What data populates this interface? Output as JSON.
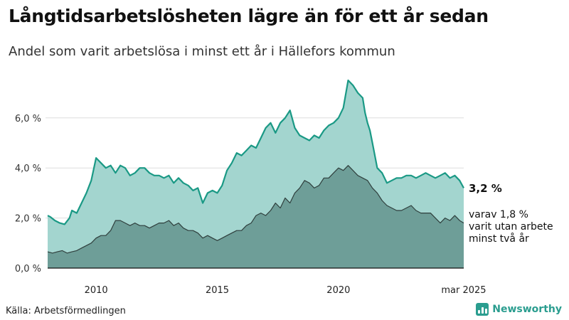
{
  "title": "Långtidsarbetslösheten lägre än för ett år sedan",
  "subtitle": "Andel som varit arbetslösa i minst ett år i Hällefors kommun",
  "source": "Källa: Arbetsförmedlingen",
  "brand": "Newsworthy",
  "annotation_main": "3,2 %",
  "annotation_sub": [
    "varav 1,8 %",
    "varit utan arbete",
    "minst två år"
  ],
  "colors": {
    "area_light": "#a3d5cf",
    "line_light": "#1a9985",
    "area_dark": "#6e9e98",
    "line_dark": "#2f3f3d",
    "grid": "#dddddd",
    "brand": "#2a9d8f"
  },
  "chart_data": {
    "type": "area",
    "ylim": [
      0,
      7.5
    ],
    "y_ticks": [
      {
        "value": 0,
        "label": "0,0 %"
      },
      {
        "value": 2,
        "label": "2,0 %"
      },
      {
        "value": 4,
        "label": "4,0 %"
      },
      {
        "value": 6,
        "label": "6,0 %"
      }
    ],
    "x_ticks": [
      {
        "value": 2010,
        "label": "2010"
      },
      {
        "value": 2015,
        "label": "2015"
      },
      {
        "value": 2020,
        "label": "2020"
      },
      {
        "value": 2025.17,
        "label": "mar 2025"
      }
    ],
    "xlim": [
      2008.0,
      2025.17
    ],
    "series": [
      {
        "x": [
          2008.0,
          2008.1,
          2008.3,
          2008.5,
          2008.7,
          2008.9,
          2009.0,
          2009.2,
          2009.4,
          2009.6,
          2009.8,
          2010.0,
          2010.2,
          2010.4,
          2010.6,
          2010.8,
          2011.0,
          2011.2,
          2011.4,
          2011.6,
          2011.8,
          2012.0,
          2012.2,
          2012.4,
          2012.6,
          2012.8,
          2013.0,
          2013.2,
          2013.4,
          2013.6,
          2013.8,
          2014.0,
          2014.2,
          2014.4,
          2014.6,
          2014.8,
          2015.0,
          2015.2,
          2015.4,
          2015.6,
          2015.8,
          2016.0,
          2016.2,
          2016.4,
          2016.6,
          2016.8,
          2017.0,
          2017.2,
          2017.4,
          2017.6,
          2017.8,
          2018.0,
          2018.2,
          2018.4,
          2018.6,
          2018.8,
          2019.0,
          2019.2,
          2019.4,
          2019.6,
          2019.8,
          2020.0,
          2020.2,
          2020.4,
          2020.6,
          2020.8,
          2021.0,
          2021.1,
          2021.2,
          2021.3,
          2021.4,
          2021.5,
          2021.6,
          2021.8,
          2022.0,
          2022.2,
          2022.4,
          2022.6,
          2022.8,
          2023.0,
          2023.2,
          2023.4,
          2023.6,
          2023.8,
          2024.0,
          2024.2,
          2024.4,
          2024.6,
          2024.8,
          2025.0,
          2025.17
        ],
        "values": [
          2.1,
          2.05,
          1.9,
          1.8,
          1.75,
          2.0,
          2.3,
          2.2,
          2.6,
          3.0,
          3.5,
          4.4,
          4.2,
          4.0,
          4.1,
          3.8,
          4.1,
          4.0,
          3.7,
          3.8,
          4.0,
          4.0,
          3.8,
          3.7,
          3.7,
          3.6,
          3.7,
          3.4,
          3.6,
          3.4,
          3.3,
          3.1,
          3.2,
          2.6,
          3.0,
          3.1,
          3.0,
          3.3,
          3.9,
          4.2,
          4.6,
          4.5,
          4.7,
          4.9,
          4.8,
          5.2,
          5.6,
          5.8,
          5.4,
          5.8,
          6.0,
          6.3,
          5.6,
          5.3,
          5.2,
          5.1,
          5.3,
          5.2,
          5.5,
          5.7,
          5.8,
          6.0,
          6.4,
          7.5,
          7.3,
          7.0,
          6.8,
          6.2,
          5.8,
          5.5,
          5.0,
          4.5,
          4.0,
          3.8,
          3.4,
          3.5,
          3.6,
          3.6,
          3.7,
          3.7,
          3.6,
          3.7,
          3.8,
          3.7,
          3.6,
          3.7,
          3.8,
          3.6,
          3.7,
          3.5,
          3.2
        ]
      },
      {
        "x": [
          2008.0,
          2008.2,
          2008.4,
          2008.6,
          2008.8,
          2009.0,
          2009.2,
          2009.4,
          2009.6,
          2009.8,
          2010.0,
          2010.2,
          2010.4,
          2010.6,
          2010.8,
          2011.0,
          2011.2,
          2011.4,
          2011.6,
          2011.8,
          2012.0,
          2012.2,
          2012.4,
          2012.6,
          2012.8,
          2013.0,
          2013.2,
          2013.4,
          2013.6,
          2013.8,
          2014.0,
          2014.2,
          2014.4,
          2014.6,
          2014.8,
          2015.0,
          2015.2,
          2015.4,
          2015.6,
          2015.8,
          2016.0,
          2016.2,
          2016.4,
          2016.6,
          2016.8,
          2017.0,
          2017.2,
          2017.4,
          2017.6,
          2017.8,
          2018.0,
          2018.2,
          2018.4,
          2018.6,
          2018.8,
          2019.0,
          2019.2,
          2019.4,
          2019.6,
          2019.8,
          2020.0,
          2020.2,
          2020.4,
          2020.6,
          2020.8,
          2021.0,
          2021.2,
          2021.4,
          2021.6,
          2021.8,
          2022.0,
          2022.2,
          2022.4,
          2022.6,
          2022.8,
          2023.0,
          2023.2,
          2023.4,
          2023.6,
          2023.8,
          2024.0,
          2024.2,
          2024.4,
          2024.6,
          2024.8,
          2025.0,
          2025.17
        ],
        "values": [
          0.65,
          0.6,
          0.65,
          0.7,
          0.6,
          0.65,
          0.7,
          0.8,
          0.9,
          1.0,
          1.2,
          1.3,
          1.3,
          1.5,
          1.9,
          1.9,
          1.8,
          1.7,
          1.8,
          1.7,
          1.7,
          1.6,
          1.7,
          1.8,
          1.8,
          1.9,
          1.7,
          1.8,
          1.6,
          1.5,
          1.5,
          1.4,
          1.2,
          1.3,
          1.2,
          1.1,
          1.2,
          1.3,
          1.4,
          1.5,
          1.5,
          1.7,
          1.8,
          2.1,
          2.2,
          2.1,
          2.3,
          2.6,
          2.4,
          2.8,
          2.6,
          3.0,
          3.2,
          3.5,
          3.4,
          3.2,
          3.3,
          3.6,
          3.6,
          3.8,
          4.0,
          3.9,
          4.1,
          3.9,
          3.7,
          3.6,
          3.5,
          3.2,
          3.0,
          2.7,
          2.5,
          2.4,
          2.3,
          2.3,
          2.4,
          2.5,
          2.3,
          2.2,
          2.2,
          2.2,
          2.0,
          1.8,
          2.0,
          1.9,
          2.1,
          1.9,
          1.8
        ]
      }
    ]
  }
}
